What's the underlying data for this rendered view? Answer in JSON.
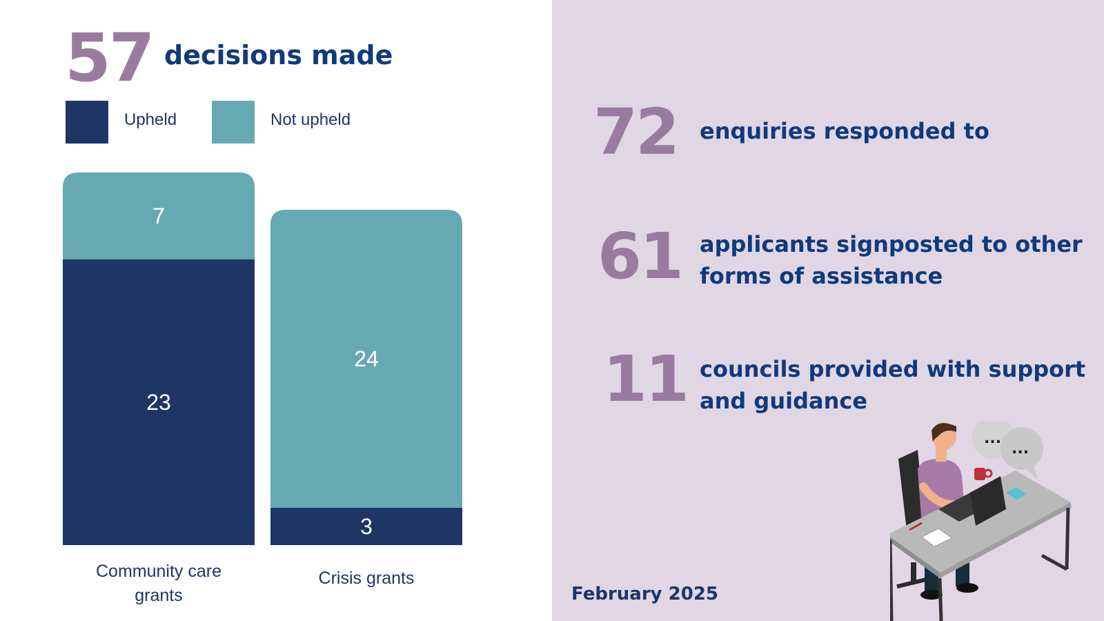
{
  "summary": {
    "number": "57",
    "label": "decisions made"
  },
  "legend": [
    {
      "label": "Upheld",
      "color": "#1f3566"
    },
    {
      "label": "Not upheld",
      "color": "#67a9b3"
    }
  ],
  "chart_data": {
    "type": "bar",
    "stacked": true,
    "categories": [
      "Community care grants",
      "Crisis grants"
    ],
    "category_lines": [
      [
        "Community care",
        "grants"
      ],
      [
        "Crisis grants"
      ]
    ],
    "series": [
      {
        "name": "Upheld",
        "values": [
          23,
          3
        ],
        "color": "#1f3566"
      },
      {
        "name": "Not upheld",
        "values": [
          7,
          24
        ],
        "color": "#67a9b3"
      }
    ]
  },
  "stats": [
    {
      "number": "72",
      "label": "enquiries responded to"
    },
    {
      "number": "61",
      "label": "applicants signposted to other forms of assistance"
    },
    {
      "number": "11",
      "label": "councils provided with support and guidance"
    }
  ],
  "period": "February 2025",
  "illustration": {
    "bubble_1": "...",
    "bubble_2": "..."
  }
}
